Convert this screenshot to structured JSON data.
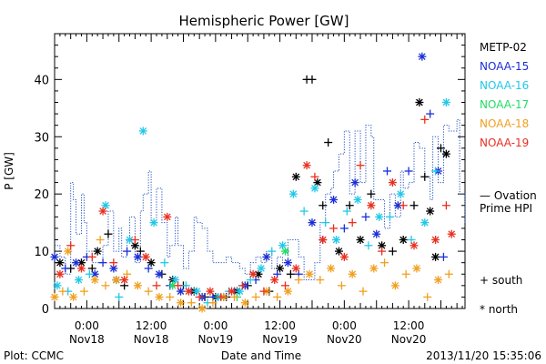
{
  "chart_data": {
    "type": "scatter",
    "title": "Hemispheric Power [GW]",
    "xlabel": "Date and Time",
    "ylabel": "P [GW]",
    "ylim": [
      0,
      48
    ],
    "yticks": [
      0,
      10,
      20,
      30,
      40
    ],
    "xlim_hours_label_origin": "Nov17 12:00",
    "xticks": [
      {
        "time": "0:00",
        "day": "Nov18"
      },
      {
        "time": "12:00",
        "day": "Nov18"
      },
      {
        "time": "0:00",
        "day": "Nov19"
      },
      {
        "time": "12:00",
        "day": "Nov19"
      },
      {
        "time": "0:00",
        "day": "Nov20"
      },
      {
        "time": "12:00",
        "day": "Nov20"
      }
    ],
    "legend": [
      {
        "name": "METP-02",
        "color": "#000000"
      },
      {
        "name": "NOAA-15",
        "color": "#1a2fd6"
      },
      {
        "name": "NOAA-16",
        "color": "#22c8e8"
      },
      {
        "name": "NOAA-17",
        "color": "#22dd66"
      },
      {
        "name": "NOAA-18",
        "color": "#f0a020"
      },
      {
        "name": "NOAA-19",
        "color": "#e83020"
      }
    ],
    "ovation_label_1": "— Ovation",
    "ovation_label_2": "Prime HPI",
    "ovation_color": "#2050c0",
    "symbol_south": "+ south",
    "symbol_north": "* north",
    "ovation_series": [
      [
        0,
        11
      ],
      [
        2,
        9
      ],
      [
        4,
        6
      ],
      [
        6,
        22
      ],
      [
        7,
        19
      ],
      [
        8,
        13
      ],
      [
        10,
        20
      ],
      [
        11,
        15
      ],
      [
        12,
        10
      ],
      [
        14,
        8
      ],
      [
        16,
        8
      ],
      [
        18,
        11
      ],
      [
        20,
        17
      ],
      [
        22,
        10
      ],
      [
        24,
        14
      ],
      [
        25,
        9
      ],
      [
        27,
        12
      ],
      [
        28,
        16
      ],
      [
        30,
        8
      ],
      [
        32,
        17
      ],
      [
        33,
        20
      ],
      [
        35,
        24
      ],
      [
        36,
        15
      ],
      [
        38,
        21
      ],
      [
        40,
        15
      ],
      [
        42,
        9
      ],
      [
        43,
        11
      ],
      [
        45,
        16
      ],
      [
        46,
        11
      ],
      [
        48,
        7
      ],
      [
        50,
        10
      ],
      [
        52,
        16
      ],
      [
        53,
        15
      ],
      [
        55,
        14
      ],
      [
        57,
        10
      ],
      [
        59,
        8
      ],
      [
        60,
        8
      ],
      [
        62,
        8
      ],
      [
        64,
        9
      ],
      [
        66,
        8
      ],
      [
        68,
        8
      ],
      [
        69,
        7
      ],
      [
        71,
        6
      ],
      [
        73,
        8
      ],
      [
        75,
        9
      ],
      [
        77,
        8
      ],
      [
        79,
        10
      ],
      [
        81,
        7
      ],
      [
        83,
        9
      ],
      [
        85,
        8
      ],
      [
        87,
        12
      ],
      [
        89,
        12
      ],
      [
        91,
        9
      ],
      [
        93,
        5
      ],
      [
        95,
        5
      ],
      [
        97,
        8
      ],
      [
        99,
        15
      ],
      [
        101,
        20
      ],
      [
        103,
        21
      ],
      [
        104,
        24
      ],
      [
        106,
        27
      ],
      [
        108,
        31
      ],
      [
        110,
        20
      ],
      [
        112,
        31
      ],
      [
        114,
        22
      ],
      [
        116,
        32
      ],
      [
        118,
        30
      ],
      [
        119,
        19
      ],
      [
        121,
        19
      ],
      [
        123,
        14
      ],
      [
        125,
        20
      ],
      [
        127,
        16
      ],
      [
        129,
        24
      ],
      [
        130,
        21
      ],
      [
        132,
        22
      ],
      [
        134,
        29
      ],
      [
        136,
        28
      ],
      [
        138,
        23
      ],
      [
        140,
        19
      ],
      [
        141,
        30
      ],
      [
        143,
        22
      ],
      [
        145,
        32
      ],
      [
        147,
        31
      ],
      [
        148,
        31
      ],
      [
        150,
        33
      ],
      [
        151,
        20
      ],
      [
        153,
        15
      ]
    ],
    "series": [
      {
        "name": "METP-02",
        "points": [
          [
            2,
            8,
            "n"
          ],
          [
            6,
            7,
            "s"
          ],
          [
            10,
            8,
            "n"
          ],
          [
            14,
            7,
            "s"
          ],
          [
            16,
            10,
            "n"
          ],
          [
            20,
            13,
            "s"
          ],
          [
            23,
            5,
            "n"
          ],
          [
            26,
            4,
            "s"
          ],
          [
            30,
            11,
            "n"
          ],
          [
            32,
            10,
            "s"
          ],
          [
            36,
            8,
            "n"
          ],
          [
            40,
            6,
            "s"
          ],
          [
            44,
            5,
            "n"
          ],
          [
            48,
            4,
            "s"
          ],
          [
            52,
            3,
            "n"
          ],
          [
            56,
            2,
            "s"
          ],
          [
            60,
            2,
            "n"
          ],
          [
            64,
            2,
            "s"
          ],
          [
            68,
            3,
            "n"
          ],
          [
            72,
            4,
            "s"
          ],
          [
            76,
            6,
            "n"
          ],
          [
            80,
            3,
            "s"
          ],
          [
            84,
            7,
            "n"
          ],
          [
            88,
            6,
            "s"
          ],
          [
            90,
            23,
            "n"
          ],
          [
            94,
            40,
            "s"
          ],
          [
            96,
            40,
            "s"
          ],
          [
            98,
            22,
            "n"
          ],
          [
            100,
            18,
            "s"
          ],
          [
            102,
            29,
            "s"
          ],
          [
            106,
            10,
            "n"
          ],
          [
            110,
            18,
            "s"
          ],
          [
            114,
            12,
            "n"
          ],
          [
            118,
            20,
            "s"
          ],
          [
            122,
            11,
            "n"
          ],
          [
            126,
            10,
            "s"
          ],
          [
            130,
            12,
            "n"
          ],
          [
            134,
            18,
            "s"
          ],
          [
            136,
            36,
            "n"
          ],
          [
            138,
            23,
            "s"
          ],
          [
            140,
            17,
            "n"
          ],
          [
            144,
            28,
            "s"
          ],
          [
            146,
            27,
            "n"
          ],
          [
            142,
            9,
            "n"
          ]
        ]
      },
      {
        "name": "NOAA-15",
        "points": [
          [
            0,
            9,
            "n"
          ],
          [
            4,
            7,
            "s"
          ],
          [
            8,
            8,
            "n"
          ],
          [
            12,
            9,
            "s"
          ],
          [
            15,
            6,
            "n"
          ],
          [
            18,
            8,
            "s"
          ],
          [
            22,
            7,
            "n"
          ],
          [
            27,
            10,
            "s"
          ],
          [
            31,
            9,
            "n"
          ],
          [
            35,
            7,
            "s"
          ],
          [
            39,
            6,
            "n"
          ],
          [
            43,
            4,
            "s"
          ],
          [
            47,
            3,
            "n"
          ],
          [
            51,
            3,
            "s"
          ],
          [
            55,
            2,
            "n"
          ],
          [
            59,
            2,
            "s"
          ],
          [
            63,
            2,
            "n"
          ],
          [
            67,
            3,
            "s"
          ],
          [
            71,
            4,
            "n"
          ],
          [
            75,
            5,
            "s"
          ],
          [
            79,
            9,
            "n"
          ],
          [
            83,
            6,
            "s"
          ],
          [
            87,
            8,
            "n"
          ],
          [
            91,
            6,
            "s"
          ],
          [
            96,
            15,
            "n"
          ],
          [
            100,
            12,
            "s"
          ],
          [
            104,
            19,
            "n"
          ],
          [
            108,
            14,
            "s"
          ],
          [
            112,
            22,
            "n"
          ],
          [
            116,
            16,
            "s"
          ],
          [
            120,
            13,
            "n"
          ],
          [
            124,
            24,
            "s"
          ],
          [
            128,
            18,
            "n"
          ],
          [
            132,
            24,
            "s"
          ],
          [
            137,
            44,
            "n"
          ],
          [
            140,
            34,
            "s"
          ],
          [
            143,
            24,
            "n"
          ],
          [
            145,
            9,
            "s"
          ]
        ]
      },
      {
        "name": "NOAA-16",
        "points": [
          [
            1,
            4,
            "n"
          ],
          [
            5,
            3,
            "s"
          ],
          [
            9,
            5,
            "n"
          ],
          [
            13,
            6,
            "s"
          ],
          [
            19,
            18,
            "n"
          ],
          [
            24,
            2,
            "s"
          ],
          [
            28,
            12,
            "n"
          ],
          [
            33,
            31,
            "n"
          ],
          [
            37,
            15,
            "n"
          ],
          [
            41,
            8,
            "s"
          ],
          [
            45,
            5,
            "n"
          ],
          [
            49,
            4,
            "s"
          ],
          [
            53,
            3,
            "n"
          ],
          [
            57,
            1,
            "s"
          ],
          [
            61,
            2,
            "n"
          ],
          [
            65,
            3,
            "s"
          ],
          [
            69,
            3,
            "n"
          ],
          [
            73,
            5,
            "s"
          ],
          [
            77,
            7,
            "n"
          ],
          [
            81,
            10,
            "s"
          ],
          [
            85,
            11,
            "n"
          ],
          [
            89,
            20,
            "n"
          ],
          [
            93,
            17,
            "s"
          ],
          [
            97,
            21,
            "n"
          ],
          [
            101,
            15,
            "s"
          ],
          [
            105,
            12,
            "n"
          ],
          [
            109,
            17,
            "s"
          ],
          [
            113,
            19,
            "n"
          ],
          [
            117,
            11,
            "s"
          ],
          [
            121,
            16,
            "n"
          ],
          [
            125,
            16,
            "s"
          ],
          [
            129,
            20,
            "n"
          ],
          [
            133,
            12,
            "s"
          ],
          [
            138,
            15,
            "n"
          ],
          [
            142,
            24,
            "s"
          ],
          [
            146,
            36,
            "n"
          ]
        ]
      },
      {
        "name": "NOAA-17",
        "points": [
          [
            44,
            4,
            "n"
          ],
          [
            68,
            2,
            "s"
          ],
          [
            86,
            10,
            "n"
          ]
        ]
      },
      {
        "name": "NOAA-18",
        "points": [
          [
            0,
            2,
            "n"
          ],
          [
            3,
            3,
            "s"
          ],
          [
            7,
            2,
            "n"
          ],
          [
            11,
            3,
            "s"
          ],
          [
            15,
            5,
            "n"
          ],
          [
            19,
            4,
            "s"
          ],
          [
            23,
            5,
            "n"
          ],
          [
            27,
            6,
            "s"
          ],
          [
            31,
            4,
            "n"
          ],
          [
            35,
            3,
            "s"
          ],
          [
            39,
            2,
            "n"
          ],
          [
            43,
            2,
            "s"
          ],
          [
            47,
            1,
            "n"
          ],
          [
            51,
            1,
            "s"
          ],
          [
            55,
            0,
            "n"
          ],
          [
            59,
            1,
            "s"
          ],
          [
            63,
            2,
            "n"
          ],
          [
            67,
            2,
            "s"
          ],
          [
            71,
            1,
            "n"
          ],
          [
            75,
            2,
            "s"
          ],
          [
            79,
            3,
            "n"
          ],
          [
            83,
            2,
            "s"
          ],
          [
            87,
            3,
            "n"
          ],
          [
            91,
            5,
            "s"
          ],
          [
            95,
            6,
            "n"
          ],
          [
            99,
            5,
            "s"
          ],
          [
            103,
            7,
            "n"
          ],
          [
            107,
            4,
            "s"
          ],
          [
            111,
            6,
            "n"
          ],
          [
            115,
            3,
            "s"
          ],
          [
            119,
            7,
            "n"
          ],
          [
            123,
            8,
            "s"
          ],
          [
            127,
            4,
            "n"
          ],
          [
            131,
            6,
            "s"
          ],
          [
            135,
            7,
            "n"
          ],
          [
            139,
            2,
            "s"
          ],
          [
            143,
            5,
            "n"
          ],
          [
            147,
            6,
            "s"
          ],
          [
            5,
            10,
            "n"
          ],
          [
            17,
            12,
            "s"
          ]
        ]
      },
      {
        "name": "NOAA-19",
        "points": [
          [
            2,
            6,
            "n"
          ],
          [
            6,
            11,
            "s"
          ],
          [
            10,
            7,
            "n"
          ],
          [
            14,
            9,
            "s"
          ],
          [
            18,
            17,
            "n"
          ],
          [
            22,
            8,
            "s"
          ],
          [
            26,
            5,
            "n"
          ],
          [
            30,
            12,
            "s"
          ],
          [
            34,
            9,
            "n"
          ],
          [
            38,
            4,
            "s"
          ],
          [
            42,
            16,
            "n"
          ],
          [
            46,
            4,
            "s"
          ],
          [
            50,
            3,
            "n"
          ],
          [
            54,
            2,
            "s"
          ],
          [
            58,
            3,
            "n"
          ],
          [
            62,
            2,
            "s"
          ],
          [
            66,
            3,
            "n"
          ],
          [
            70,
            4,
            "s"
          ],
          [
            74,
            6,
            "n"
          ],
          [
            78,
            3,
            "s"
          ],
          [
            82,
            5,
            "n"
          ],
          [
            86,
            4,
            "s"
          ],
          [
            90,
            7,
            "n"
          ],
          [
            94,
            25,
            "n"
          ],
          [
            97,
            23,
            "s"
          ],
          [
            100,
            12,
            "n"
          ],
          [
            104,
            14,
            "s"
          ],
          [
            108,
            9,
            "n"
          ],
          [
            111,
            15,
            "s"
          ],
          [
            114,
            25,
            "s"
          ],
          [
            118,
            18,
            "n"
          ],
          [
            122,
            10,
            "s"
          ],
          [
            126,
            22,
            "n"
          ],
          [
            130,
            18,
            "s"
          ],
          [
            134,
            11,
            "n"
          ],
          [
            138,
            33,
            "s"
          ],
          [
            142,
            12,
            "n"
          ],
          [
            146,
            18,
            "s"
          ],
          [
            148,
            13,
            "n"
          ]
        ]
      }
    ]
  },
  "footer": {
    "left": "Plot: CCMC",
    "right": "2013/11/20 15:35:06"
  }
}
